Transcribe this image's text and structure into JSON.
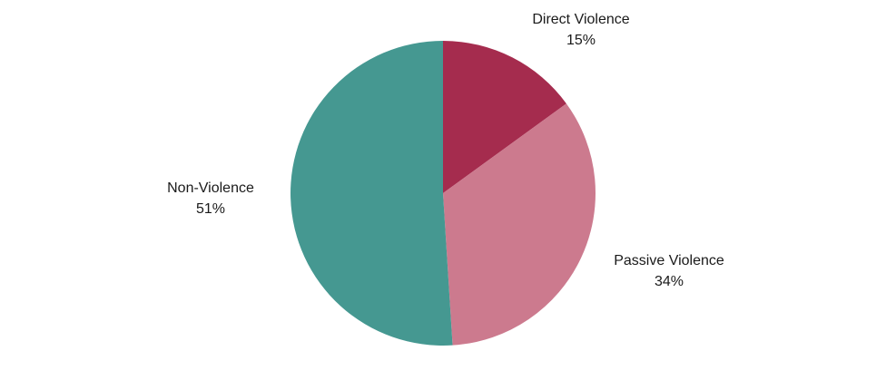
{
  "chart_data": {
    "type": "pie",
    "title": "",
    "start_angle_deg": 0,
    "direction": "clockwise",
    "slices": [
      {
        "label": "Direct Violence",
        "value": 15,
        "value_label": "15%",
        "color": "#a52c4e"
      },
      {
        "label": "Passive Violence",
        "value": 34,
        "value_label": "34%",
        "color": "#cc7a8e"
      },
      {
        "label": "Non-Violence",
        "value": 51,
        "value_label": "51%",
        "color": "#459891"
      }
    ]
  }
}
